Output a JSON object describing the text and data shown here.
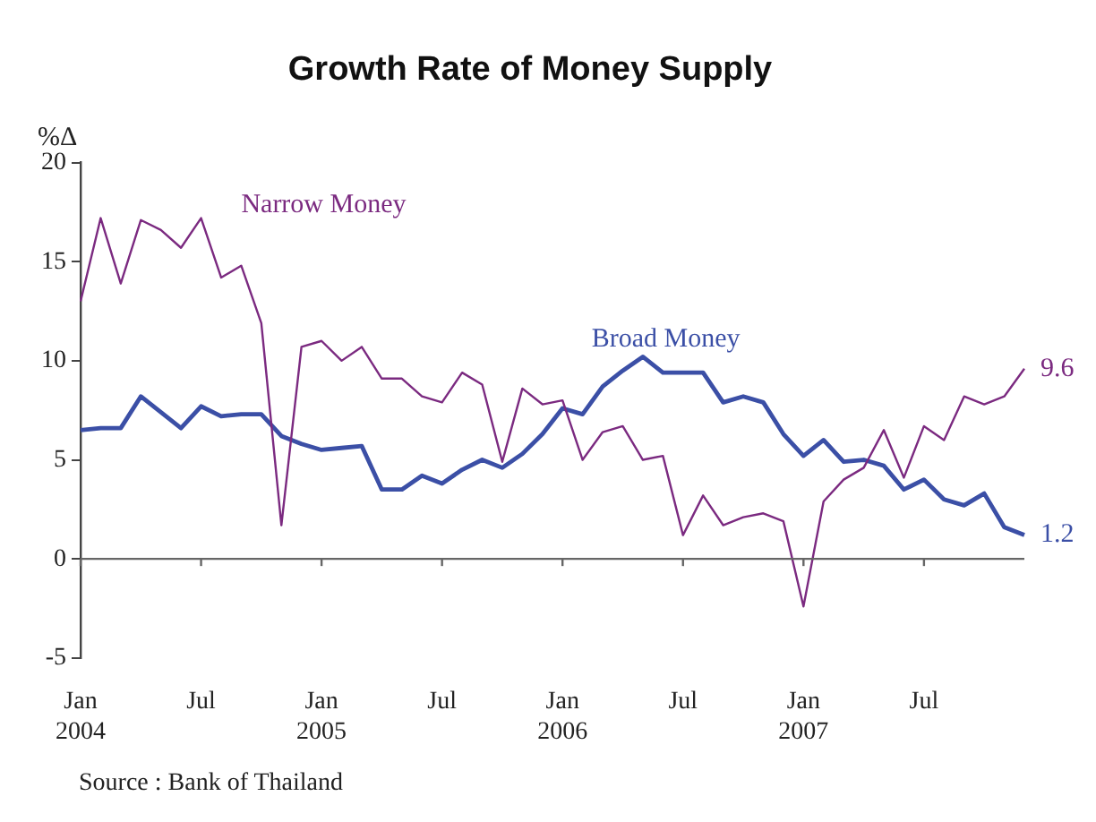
{
  "chart_data": {
    "type": "line",
    "title": "Growth Rate of Money Supply",
    "ylabel": "%Δ",
    "marker": "none",
    "categories": [
      "Jan 2004",
      null,
      null,
      null,
      null,
      null,
      "Jul",
      null,
      null,
      null,
      null,
      null,
      "Jan 2005",
      null,
      null,
      null,
      null,
      null,
      "Jul",
      null,
      null,
      null,
      null,
      null,
      "Jan 2006",
      null,
      null,
      null,
      null,
      null,
      "Jul",
      null,
      null,
      null,
      null,
      null,
      "Jan 2007",
      null,
      null,
      null,
      null,
      null,
      "Jul",
      null,
      null,
      null,
      null,
      null
    ],
    "ylim": [
      -5,
      20
    ],
    "yticks": [
      -5,
      0,
      5,
      10,
      15,
      20
    ],
    "series": [
      {
        "name": "Narrow Money",
        "color": "#7b2a80",
        "values": [
          13.0,
          17.2,
          13.9,
          17.1,
          16.6,
          15.7,
          17.2,
          14.2,
          14.8,
          11.9,
          1.7,
          10.7,
          11.0,
          10.0,
          10.7,
          9.1,
          9.1,
          8.2,
          7.9,
          9.4,
          8.8,
          4.9,
          8.6,
          7.8,
          8.0,
          5.0,
          6.4,
          6.7,
          5.0,
          5.2,
          1.2,
          3.2,
          1.7,
          2.1,
          2.3,
          1.9,
          -2.4,
          2.9,
          4.0,
          4.6,
          6.5,
          4.1,
          6.7,
          6.0,
          8.2,
          7.8,
          8.2,
          9.6
        ],
        "value_labels": [
          null,
          null,
          null,
          null,
          null,
          null,
          null,
          null,
          null,
          null,
          null,
          null,
          null,
          null,
          null,
          null,
          null,
          null,
          null,
          null,
          null,
          null,
          null,
          null,
          null,
          null,
          null,
          null,
          null,
          null,
          null,
          null,
          null,
          null,
          null,
          null,
          null,
          null,
          null,
          null,
          null,
          null,
          null,
          null,
          null,
          null,
          null,
          "9.6"
        ]
      },
      {
        "name": "Broad Money",
        "color": "#3b4fa6",
        "values": [
          6.5,
          6.6,
          6.6,
          8.2,
          7.4,
          6.6,
          7.7,
          7.2,
          7.3,
          7.3,
          6.2,
          5.8,
          5.5,
          5.6,
          5.7,
          3.5,
          3.5,
          4.2,
          3.8,
          4.5,
          5.0,
          4.6,
          5.3,
          6.3,
          7.6,
          7.3,
          8.7,
          9.5,
          10.2,
          9.4,
          9.4,
          9.4,
          7.9,
          8.2,
          7.9,
          6.3,
          5.2,
          6.0,
          4.9,
          5.0,
          4.7,
          3.5,
          4.0,
          3.0,
          2.7,
          3.3,
          1.6,
          1.2
        ],
        "value_labels": [
          null,
          null,
          null,
          null,
          null,
          null,
          null,
          null,
          null,
          null,
          null,
          null,
          null,
          null,
          null,
          null,
          null,
          null,
          null,
          null,
          null,
          null,
          null,
          null,
          null,
          null,
          null,
          null,
          null,
          null,
          null,
          null,
          null,
          null,
          null,
          null,
          null,
          null,
          null,
          null,
          null,
          null,
          null,
          null,
          null,
          null,
          null,
          "1.2"
        ]
      }
    ],
    "annotations": [
      "Source : Bank of Thailand"
    ]
  }
}
